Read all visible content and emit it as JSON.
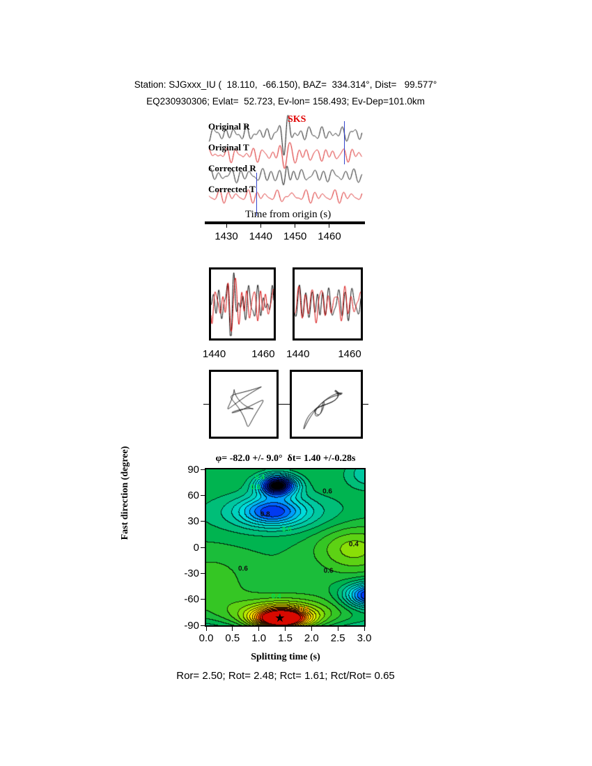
{
  "header": {
    "line1": "Station: SJGxxx_IU (  18.110,  -66.150), BAZ=  334.314°, Dist=   99.577°",
    "line2": "EQ230930306; Evlat=  52.723, Ev-lon= 158.493; Ev-Dep=101.0km"
  },
  "footer": {
    "stats": "Ror= 2.50; Rot= 2.48; Rct= 1.61; Rct/Rot= 0.65"
  },
  "chart_data": [
    {
      "type": "line",
      "id": "waveform-panel",
      "xlabel": "Time from origin (s)",
      "xticks": [
        "1430",
        "1440",
        "1450",
        "1460"
      ],
      "xtick_values": [
        1430,
        1440,
        1450,
        1460
      ],
      "t_range": [
        1425,
        1469.5
      ],
      "phase_label": "SKS",
      "phase_time": 1449,
      "window": [
        1438.7,
        1464.3
      ],
      "window_color": "#3344cc",
      "traces": [
        {
          "label": "Original R",
          "color": "#000000",
          "components": [
            [
              5,
              3.1,
              0.5
            ],
            [
              4,
              2.0,
              2.0
            ],
            [
              3,
              4.5,
              1.0
            ]
          ],
          "burst": [
            24,
            1447.3,
            1.5,
            2.8
          ]
        },
        {
          "label": "Original T",
          "color": "#d40000",
          "components": [
            [
              5,
              2.6,
              1.2
            ],
            [
              4,
              3.8,
              0.3
            ],
            [
              3,
              1.9,
              2.6
            ]
          ],
          "burst": [
            13,
            1447.8,
            2.2,
            3.0
          ]
        },
        {
          "label": "Corrected R",
          "color": "#000000",
          "components": [
            [
              5,
              3.0,
              1.0
            ],
            [
              4,
              2.2,
              2.4
            ],
            [
              3,
              5.0,
              0.2
            ]
          ],
          "burst": [
            22,
            1447.2,
            1.4,
            2.7
          ]
        },
        {
          "label": "Corrected T",
          "color": "#d40000",
          "components": [
            [
              5,
              2.8,
              2.0
            ],
            [
              3,
              2.1,
              0.8
            ],
            [
              3,
              4.2,
              1.9
            ]
          ],
          "burst": [
            7,
            1448.0,
            2.0,
            2.9
          ]
        }
      ]
    },
    {
      "type": "line",
      "id": "zoom-windows",
      "t_range": [
        1438.7,
        1464.3
      ],
      "xticks": [
        "1440",
        "1460"
      ],
      "xtick_values": [
        1440,
        1460
      ],
      "panels": [
        {
          "name": "original-pair",
          "series": [
            {
              "color": "#000000",
              "components": [
                [
                  14,
                  3.1,
                  0.5
                ],
                [
                  10,
                  2.0,
                  2.0
                ],
                [
                  8,
                  4.5,
                  1.0
                ]
              ],
              "burst": [
                30,
                1447.3,
                1.8,
                2.8
              ]
            },
            {
              "color": "#d40000",
              "components": [
                [
                  13,
                  2.6,
                  1.2
                ],
                [
                  10,
                  3.8,
                  0.3
                ],
                [
                  8,
                  1.9,
                  2.6
                ]
              ],
              "burst": [
                26,
                1448.0,
                2.2,
                3.0
              ]
            }
          ]
        },
        {
          "name": "corrected-pair",
          "series": [
            {
              "color": "#000000",
              "components": [
                [
                  14,
                  3.0,
                  1.0
                ],
                [
                  10,
                  2.2,
                  2.4
                ],
                [
                  8,
                  5.0,
                  0.2
                ]
              ],
              "burst": [
                30,
                1447.2,
                1.6,
                2.7
              ]
            },
            {
              "color": "#d40000",
              "components": [
                [
                  13,
                  3.0,
                  1.6
                ],
                [
                  9,
                  2.2,
                  2.9
                ],
                [
                  8,
                  4.6,
                  0.6
                ]
              ],
              "burst": [
                27,
                1447.5,
                1.7,
                2.7
              ]
            }
          ]
        }
      ]
    },
    {
      "type": "scatter",
      "id": "particle-motion",
      "panels": [
        {
          "name": "original-motion",
          "x_components": [
            [
              16,
              3,
              0.0
            ],
            [
              9,
              5,
              1.2
            ],
            [
              5,
              2,
              2.1
            ],
            [
              9,
              1,
              1.0
            ]
          ],
          "y_components": [
            [
              13,
              3,
              1.3
            ],
            [
              7,
              5,
              0.2
            ],
            [
              6,
              2,
              2.9
            ],
            [
              13,
              1,
              4.6
            ]
          ]
        },
        {
          "name": "corrected-motion",
          "u_components": [
            [
              19,
              2,
              0.0
            ],
            [
              12,
              3,
              0.7
            ],
            [
              7,
              5,
              1.9
            ]
          ],
          "x_scale": 0.95,
          "y_scale": 0.88,
          "x_wiggle": [
            4,
            7,
            0.5
          ],
          "y_wiggle": [
            4,
            7,
            2.6
          ]
        }
      ]
    },
    {
      "type": "heatmap",
      "id": "splitting-misfit-surface",
      "title": "φ= -82.0 +/- 9.0°  δt= 1.40 +/-0.28s",
      "xlabel": "Splitting time (s)",
      "ylabel": "Fast direction (degree)",
      "xlim": [
        0,
        3
      ],
      "ylim": [
        -90,
        90
      ],
      "xticks": [
        "0.0",
        "0.5",
        "1.0",
        "1.5",
        "2.0",
        "2.5",
        "3.0"
      ],
      "xtick_values": [
        0,
        0.5,
        1,
        1.5,
        2,
        2.5,
        3
      ],
      "yticks": [
        "90",
        "60",
        "30",
        "0",
        "-30",
        "-60",
        "-90"
      ],
      "ytick_values": [
        90,
        60,
        30,
        0,
        -30,
        -60,
        -90
      ],
      "best_solution": {
        "fast_direction_deg": -82.0,
        "fast_direction_err_deg": 9.0,
        "split_time_s": 1.4,
        "split_time_err_s": 0.28
      },
      "star": {
        "x": 1.4,
        "y": -82,
        "glyph": "★"
      },
      "field": {
        "baseline": 0.52,
        "band_step": 0.04,
        "gaussians": [
          [
            0.5,
            1.35,
            72,
            0.26,
            8.5
          ],
          [
            0.24,
            1.25,
            42,
            0.4,
            11
          ],
          [
            0.12,
            1.3,
            40,
            0.95,
            17
          ],
          [
            0.38,
            3.1,
            -55,
            0.32,
            10
          ],
          [
            -0.6,
            1.42,
            -82,
            0.34,
            8
          ],
          [
            -0.22,
            1.45,
            -80,
            0.75,
            15
          ],
          [
            -0.14,
            2.8,
            -1,
            0.5,
            19
          ],
          [
            0.15,
            1.5,
            -102,
            3.0,
            14
          ],
          [
            0.13,
            3.15,
            85,
            0.35,
            12
          ],
          [
            -0.07,
            0.1,
            -40,
            0.45,
            22
          ]
        ]
      },
      "palette": [
        [
          0.0,
          "#c80000"
        ],
        [
          0.07,
          "#ff2000"
        ],
        [
          0.14,
          "#ff7700"
        ],
        [
          0.21,
          "#ffc800"
        ],
        [
          0.28,
          "#fff000"
        ],
        [
          0.36,
          "#a0e600"
        ],
        [
          0.45,
          "#3cc81e"
        ],
        [
          0.54,
          "#00b450"
        ],
        [
          0.62,
          "#00c8a0"
        ],
        [
          0.7,
          "#00dcdc"
        ],
        [
          0.78,
          "#009cff"
        ],
        [
          0.85,
          "#0040ff"
        ],
        [
          0.92,
          "#0016a0"
        ],
        [
          1.0,
          "#000000"
        ]
      ],
      "contour_labels": [
        {
          "value": "0.4",
          "x": 1.02,
          "y": 80,
          "color": "#00e050"
        },
        {
          "value": "0.6",
          "x": 0.94,
          "y": 69,
          "color": "#00e050"
        },
        {
          "value": "0.6",
          "x": 2.3,
          "y": 64,
          "color": "#111111"
        },
        {
          "value": "0.8",
          "x": 1.12,
          "y": 38,
          "color": "#111111"
        },
        {
          "value": "0.6",
          "x": 1.53,
          "y": 20,
          "color": "#00e050"
        },
        {
          "value": "0.4",
          "x": 2.8,
          "y": 3,
          "color": "#111111"
        },
        {
          "value": "0.6",
          "x": 0.7,
          "y": -25,
          "color": "#111111"
        },
        {
          "value": "0.6",
          "x": 2.32,
          "y": -27,
          "color": "#111111"
        },
        {
          "value": "0.4",
          "x": 1.33,
          "y": -57,
          "color": "#00e050"
        },
        {
          "value": "0.5",
          "x": 1.86,
          "y": -72,
          "color": "#ff9900"
        }
      ]
    }
  ]
}
